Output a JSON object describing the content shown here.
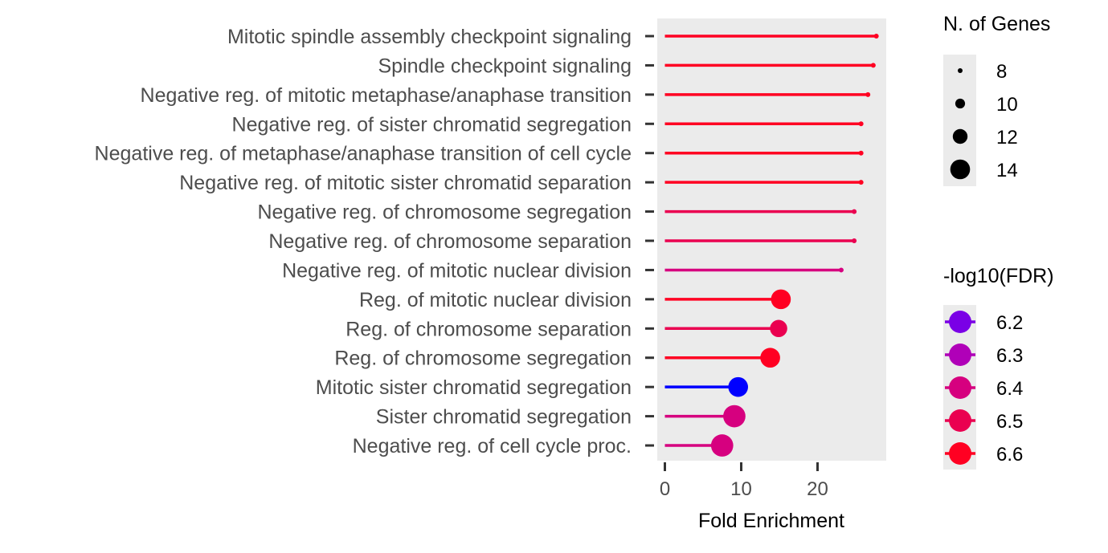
{
  "chart_data": {
    "type": "lollipop",
    "xlabel": "Fold Enrichment",
    "xlim": [
      -1,
      29
    ],
    "xticks": [
      0,
      10,
      20
    ],
    "grid": false,
    "panel_background": "#ebebeb",
    "terms": [
      {
        "label": "Mitotic spindle assembly checkpoint signaling",
        "fold": 27.7,
        "genes": 8,
        "log10fdr": 6.6
      },
      {
        "label": "Spindle checkpoint signaling",
        "fold": 27.3,
        "genes": 8,
        "log10fdr": 6.6
      },
      {
        "label": "Negative reg. of mitotic metaphase/anaphase transition",
        "fold": 26.6,
        "genes": 8,
        "log10fdr": 6.6
      },
      {
        "label": "Negative reg. of sister chromatid segregation",
        "fold": 25.7,
        "genes": 8,
        "log10fdr": 6.6
      },
      {
        "label": "Negative reg. of metaphase/anaphase transition of cell cycle",
        "fold": 25.7,
        "genes": 8,
        "log10fdr": 6.6
      },
      {
        "label": "Negative reg. of mitotic sister chromatid separation",
        "fold": 25.7,
        "genes": 8,
        "log10fdr": 6.6
      },
      {
        "label": "Negative reg. of chromosome segregation",
        "fold": 24.8,
        "genes": 8,
        "log10fdr": 6.5
      },
      {
        "label": "Negative reg. of chromosome separation",
        "fold": 24.8,
        "genes": 8,
        "log10fdr": 6.5
      },
      {
        "label": "Negative reg. of mitotic nuclear division",
        "fold": 23.1,
        "genes": 8,
        "log10fdr": 6.4
      },
      {
        "label": "Reg. of mitotic nuclear division",
        "fold": 15.2,
        "genes": 14,
        "log10fdr": 6.6
      },
      {
        "label": "Reg. of chromosome separation",
        "fold": 14.9,
        "genes": 13,
        "log10fdr": 6.5
      },
      {
        "label": "Reg. of chromosome segregation",
        "fold": 13.8,
        "genes": 14,
        "log10fdr": 6.6
      },
      {
        "label": "Mitotic sister chromatid segregation",
        "fold": 9.6,
        "genes": 14,
        "log10fdr": 6.1
      },
      {
        "label": "Sister chromatid segregation",
        "fold": 9.1,
        "genes": 15,
        "log10fdr": 6.4
      },
      {
        "label": "Negative reg. of cell cycle proc.",
        "fold": 7.5,
        "genes": 15,
        "log10fdr": 6.4
      }
    ],
    "size_legend": {
      "title": "N. of Genes",
      "values": [
        8,
        10,
        12,
        14
      ]
    },
    "color_legend": {
      "title": "-log10(FDR)",
      "values": [
        6.2,
        6.3,
        6.4,
        6.5,
        6.6
      ],
      "colors": [
        "#7a00e6",
        "#b000b8",
        "#d6007f",
        "#ea0050",
        "#ff0022"
      ]
    },
    "color_scale": {
      "stops": [
        {
          "v": 6.1,
          "color": "#0000ff"
        },
        {
          "v": 6.2,
          "color": "#7a00e6"
        },
        {
          "v": 6.3,
          "color": "#b000b8"
        },
        {
          "v": 6.4,
          "color": "#d6007f"
        },
        {
          "v": 6.5,
          "color": "#ea0050"
        },
        {
          "v": 6.6,
          "color": "#ff0022"
        }
      ]
    }
  }
}
